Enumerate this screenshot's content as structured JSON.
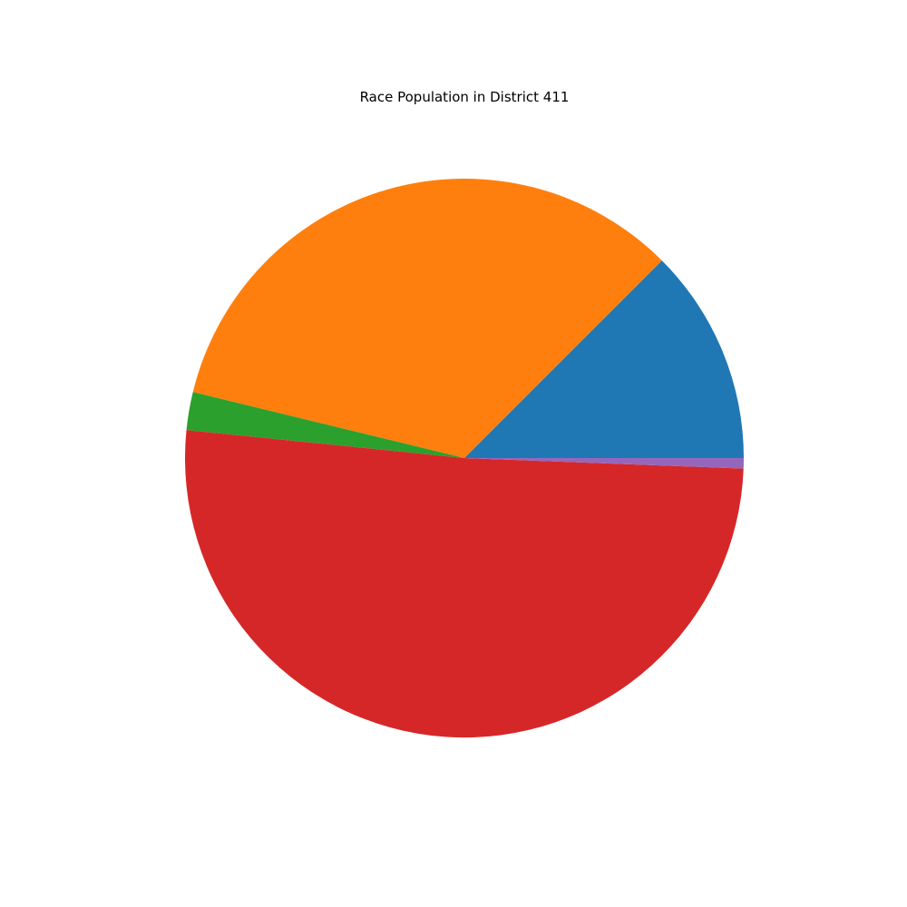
{
  "chart_data": {
    "type": "pie",
    "title": "Race Population in District 411",
    "start_angle_deg": 0,
    "direction": "counterclockwise",
    "slices": [
      {
        "value": 12.5,
        "color": "#1f77b4"
      },
      {
        "value": 33.7,
        "color": "#ff7f0e"
      },
      {
        "value": 2.2,
        "color": "#2ca02c"
      },
      {
        "value": 51.0,
        "color": "#d62728"
      },
      {
        "value": 0.6,
        "color": "#9467bd"
      }
    ]
  }
}
